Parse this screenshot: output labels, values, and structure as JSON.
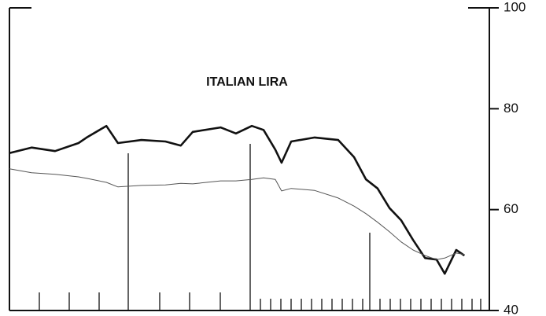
{
  "chart_data": {
    "type": "line",
    "title": "ITALIAN LIRA",
    "x": [
      0,
      4.6,
      9.5,
      14.4,
      16.1,
      20.2,
      22.6,
      27.5,
      32.5,
      35.7,
      38.2,
      44,
      47.2,
      50.5,
      52.95,
      55.4,
      56.7,
      58.7,
      63.6,
      68.5,
      71.8,
      74.3,
      76.7,
      79.2,
      81.6,
      84.1,
      86.6,
      89,
      90.7,
      93.1,
      94.8
    ],
    "xlim": [
      0,
      100
    ],
    "series": [
      {
        "color": "#111111",
        "values": [
          71.2,
          72.3,
          71.6,
          73.2,
          74.3,
          76.6,
          73.2,
          73.8,
          73.5,
          72.7,
          75.4,
          76.3,
          75.1,
          76.6,
          75.8,
          71.9,
          69.3,
          73.5,
          74.3,
          73.8,
          70.4,
          66.0,
          64.2,
          60.3,
          57.9,
          54.0,
          50.4,
          50.1,
          47.3,
          52.0,
          50.9
        ]
      },
      {
        "color": "#555555",
        "values": [
          68.1,
          67.3,
          67.0,
          66.5,
          66.2,
          65.4,
          64.5,
          64.8,
          64.9,
          65.2,
          65.1,
          65.7,
          65.7,
          66.0,
          66.3,
          66.0,
          63.7,
          64.2,
          63.8,
          62.3,
          60.7,
          59.2,
          57.5,
          55.6,
          53.6,
          52.0,
          50.9,
          50.1,
          50.4,
          51.4,
          51.1
        ]
      }
    ],
    "ylim": [
      40,
      100
    ],
    "yticks": [
      40,
      60,
      80,
      100
    ],
    "yaxis_side": "right"
  }
}
